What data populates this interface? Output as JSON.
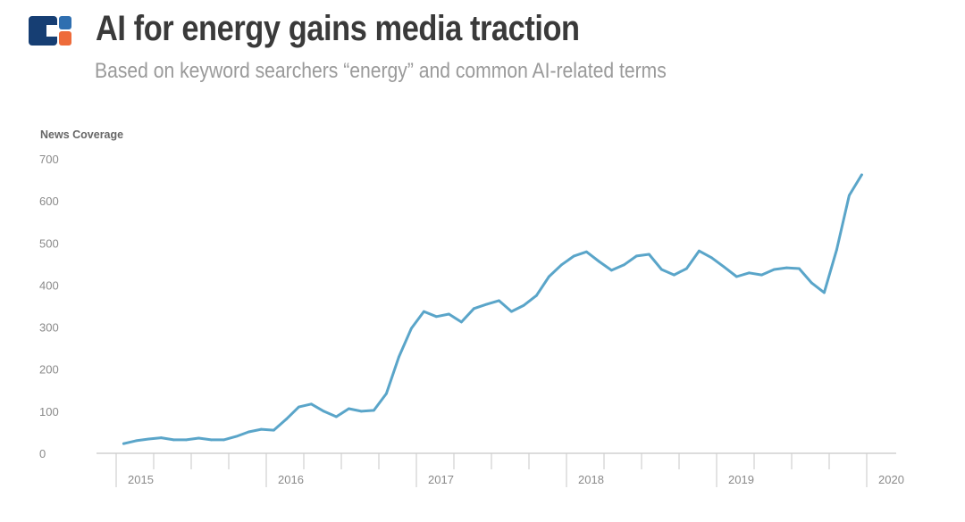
{
  "header": {
    "title": "AI for energy gains media traction",
    "subtitle": "Based on keyword searchers “energy” and common AI-related terms",
    "logo_colors": {
      "blue": "#163e73",
      "light_blue": "#2f6fb0",
      "orange": "#ee6b3a"
    }
  },
  "chart_data": {
    "type": "line",
    "title": "AI for energy gains media traction",
    "subtitle": "Based on keyword searchers “energy” and common AI-related terms",
    "ylabel": "News Coverage",
    "xlabel": "",
    "ylim": [
      0,
      700
    ],
    "yticks": [
      "0",
      "100",
      "200",
      "300",
      "400",
      "500",
      "600",
      "700"
    ],
    "xticks": [
      "2015",
      "2016",
      "2017",
      "2018",
      "2019",
      "2020"
    ],
    "xlim": [
      2015,
      2020.2
    ],
    "grid": false,
    "color": "#5aa5c9",
    "series": [
      {
        "name": "News Coverage",
        "x_start": 2015.05,
        "x_step_months": 1,
        "values": [
          23,
          30,
          34,
          37,
          32,
          32,
          36,
          32,
          32,
          40,
          51,
          57,
          55,
          81,
          110,
          117,
          100,
          87,
          106,
          100,
          102,
          142,
          229,
          297,
          337,
          325,
          331,
          312,
          344,
          354,
          363,
          337,
          352,
          375,
          420,
          448,
          469,
          479,
          456,
          435,
          448,
          469,
          473,
          437,
          424,
          439,
          481,
          465,
          443,
          420,
          429,
          424,
          437,
          441,
          439,
          405,
          382,
          484,
          613,
          662
        ]
      }
    ]
  }
}
